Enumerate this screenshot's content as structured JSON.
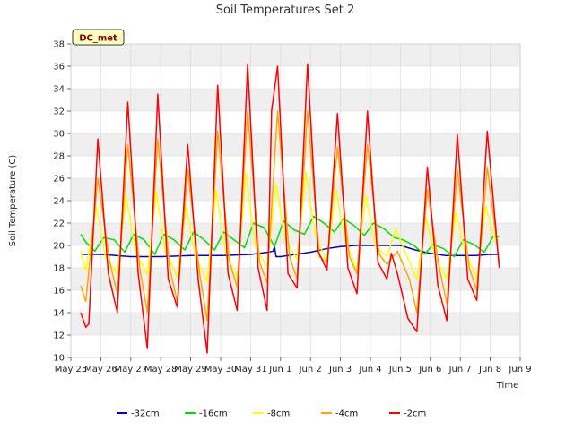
{
  "chart_data": {
    "type": "line",
    "title": "Soil Temperatures Set 2",
    "xlabel": "Time",
    "ylabel": "Soil Temperature (C)",
    "badge": "DC_met",
    "ylim": [
      10,
      38
    ],
    "yticks": [
      10,
      12,
      14,
      16,
      18,
      20,
      22,
      24,
      26,
      28,
      30,
      32,
      34,
      36,
      38
    ],
    "xlim": [
      0,
      15
    ],
    "xticks": [
      {
        "x": 0,
        "label": "May 25"
      },
      {
        "x": 1,
        "label": "May 26"
      },
      {
        "x": 2,
        "label": "May 27"
      },
      {
        "x": 3,
        "label": "May 28"
      },
      {
        "x": 4,
        "label": "May 29"
      },
      {
        "x": 5,
        "label": "May 30"
      },
      {
        "x": 6,
        "label": "May 31"
      },
      {
        "x": 7,
        "label": "Jun 1"
      },
      {
        "x": 8,
        "label": "Jun 2"
      },
      {
        "x": 9,
        "label": "Jun 3"
      },
      {
        "x": 10,
        "label": "Jun 4"
      },
      {
        "x": 11,
        "label": "Jun 5"
      },
      {
        "x": 12,
        "label": "Jun 6"
      },
      {
        "x": 13,
        "label": "Jun 7"
      },
      {
        "x": 14,
        "label": "Jun 8"
      },
      {
        "x": 15,
        "label": "Jun 9"
      }
    ],
    "grid": true,
    "legend_placement": "bottom",
    "series": [
      {
        "name": "-32cm",
        "color": "#0000cc",
        "x": [
          0.33,
          1.0,
          2.0,
          3.0,
          4.0,
          5.0,
          6.0,
          6.6,
          6.75,
          6.8,
          6.85,
          7.0,
          7.5,
          8.0,
          8.5,
          9.0,
          9.5,
          10.0,
          10.5,
          11.0,
          11.5,
          12.0,
          12.5,
          13.0,
          13.5,
          14.0,
          14.3
        ],
        "y": [
          19.2,
          19.2,
          19.0,
          19.0,
          19.1,
          19.1,
          19.2,
          19.4,
          19.5,
          19.9,
          19.0,
          19.0,
          19.2,
          19.4,
          19.7,
          19.9,
          20.0,
          20.0,
          20.0,
          20.0,
          19.6,
          19.3,
          19.1,
          19.1,
          19.1,
          19.2,
          19.2
        ]
      },
      {
        "name": "-16cm",
        "color": "#00dd00",
        "x": [
          0.33,
          0.5,
          0.8,
          1.1,
          1.45,
          1.8,
          2.1,
          2.45,
          2.8,
          3.1,
          3.45,
          3.8,
          4.1,
          4.45,
          4.8,
          5.1,
          5.45,
          5.8,
          6.1,
          6.45,
          6.8,
          7.1,
          7.45,
          7.8,
          8.1,
          8.45,
          8.8,
          9.1,
          9.45,
          9.8,
          10.1,
          10.45,
          10.8,
          11.1,
          11.45,
          11.8,
          12.1,
          12.45,
          12.8,
          13.1,
          13.45,
          13.8,
          14.1,
          14.3
        ],
        "y": [
          21.0,
          20.3,
          19.5,
          20.7,
          20.5,
          19.4,
          21.0,
          20.5,
          19.2,
          21.0,
          20.5,
          19.6,
          21.2,
          20.5,
          19.6,
          21.2,
          20.5,
          19.8,
          22.0,
          21.6,
          19.9,
          22.2,
          21.4,
          21.0,
          22.6,
          22.0,
          21.2,
          22.4,
          21.8,
          20.9,
          22.0,
          21.5,
          20.7,
          20.5,
          20.0,
          19.2,
          20.1,
          19.7,
          19.0,
          20.5,
          20.1,
          19.4,
          20.8,
          20.8
        ]
      },
      {
        "name": "-8cm",
        "color": "#ffff00",
        "x": [
          0.33,
          0.5,
          0.85,
          1.15,
          1.55,
          1.85,
          2.15,
          2.55,
          2.85,
          3.15,
          3.55,
          3.85,
          4.15,
          4.55,
          4.85,
          5.15,
          5.55,
          5.85,
          6.15,
          6.55,
          6.85,
          7.15,
          7.55,
          7.85,
          8.15,
          8.55,
          8.85,
          9.15,
          9.55,
          9.85,
          10.15,
          10.55,
          10.85,
          11.15,
          11.55,
          11.85,
          12.15,
          12.55,
          12.85,
          13.15,
          13.55,
          13.85,
          14.15,
          14.3
        ],
        "y": [
          19.5,
          17.8,
          23.5,
          19.0,
          17.5,
          24.5,
          19.5,
          17.4,
          24.8,
          19.5,
          17.2,
          23.5,
          19.0,
          16.8,
          25.0,
          19.5,
          17.0,
          26.5,
          20.0,
          18.0,
          25.5,
          20.5,
          18.8,
          26.5,
          21.0,
          18.5,
          25.0,
          20.5,
          17.8,
          24.5,
          20.0,
          19.0,
          21.5,
          19.5,
          17.0,
          22.5,
          19.0,
          17.0,
          23.0,
          19.5,
          17.0,
          23.5,
          20.5,
          20.5
        ]
      },
      {
        "name": "-4cm",
        "color": "#ffa500",
        "x": [
          0.33,
          0.5,
          0.9,
          1.3,
          1.55,
          1.9,
          2.3,
          2.55,
          2.9,
          3.3,
          3.55,
          3.9,
          4.3,
          4.55,
          4.9,
          5.3,
          5.55,
          5.9,
          6.3,
          6.55,
          6.9,
          7.3,
          7.55,
          7.9,
          8.3,
          8.55,
          8.9,
          9.3,
          9.55,
          9.9,
          10.3,
          10.55,
          10.9,
          11.3,
          11.55,
          11.9,
          12.3,
          12.55,
          12.9,
          13.3,
          13.55,
          13.9,
          14.3
        ],
        "y": [
          16.4,
          15.0,
          26.0,
          18.5,
          15.7,
          29.0,
          18.0,
          14.0,
          29.5,
          18.0,
          15.0,
          26.8,
          17.5,
          13.3,
          30.2,
          18.5,
          16.3,
          32.0,
          18.5,
          16.7,
          32.0,
          19.0,
          17.0,
          32.0,
          19.0,
          18.5,
          28.8,
          19.0,
          17.5,
          29.0,
          19.2,
          18.3,
          19.5,
          17.0,
          14.0,
          25.0,
          18.0,
          14.8,
          26.8,
          18.0,
          16.0,
          27.0,
          18.5
        ]
      },
      {
        "name": "-2cm",
        "color": "#ff0000",
        "x": [
          0.33,
          0.5,
          0.6,
          0.9,
          1.25,
          1.55,
          1.9,
          2.25,
          2.55,
          2.9,
          3.25,
          3.55,
          3.9,
          4.25,
          4.55,
          4.9,
          5.25,
          5.55,
          5.9,
          6.25,
          6.55,
          6.7,
          6.9,
          7.25,
          7.55,
          7.9,
          8.25,
          8.55,
          8.9,
          9.25,
          9.55,
          9.9,
          10.25,
          10.55,
          10.7,
          10.9,
          11.25,
          11.55,
          11.9,
          12.25,
          12.55,
          12.9,
          13.25,
          13.55,
          13.9,
          14.3
        ],
        "y": [
          14.0,
          12.7,
          13.0,
          29.5,
          17.5,
          14.0,
          32.8,
          17.5,
          10.8,
          33.5,
          17.0,
          14.5,
          29.0,
          17.0,
          10.4,
          34.3,
          17.5,
          14.2,
          36.2,
          18.0,
          14.2,
          32.0,
          36.0,
          17.5,
          16.2,
          36.2,
          19.5,
          17.8,
          31.8,
          18.0,
          15.7,
          32.0,
          18.5,
          17.0,
          19.3,
          17.5,
          13.5,
          12.3,
          27.0,
          16.5,
          13.3,
          29.9,
          17.0,
          15.1,
          30.2,
          18.0
        ]
      }
    ]
  }
}
